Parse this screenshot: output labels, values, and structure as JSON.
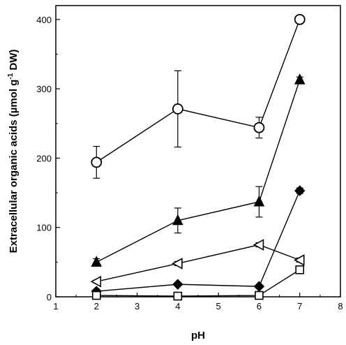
{
  "chart_data": {
    "type": "scatter",
    "xlabel": "pH",
    "ylabel_parts": [
      "Extracellular organic acids (µmol g",
      "-1",
      " DW)"
    ],
    "xlim": [
      1,
      8
    ],
    "ylim": [
      0,
      420
    ],
    "x_ticks": [
      1,
      2,
      3,
      4,
      5,
      6,
      7,
      8
    ],
    "y_ticks": [
      0,
      100,
      200,
      300,
      400
    ],
    "grid": false,
    "series": [
      {
        "marker": "open-circle",
        "points": [
          {
            "x": 2,
            "y": 194,
            "err": 23
          },
          {
            "x": 4,
            "y": 271,
            "err": 55
          },
          {
            "x": 6,
            "y": 244,
            "err": 15
          },
          {
            "x": 7,
            "y": 400,
            "err": 3
          }
        ]
      },
      {
        "marker": "filled-triangle-up",
        "points": [
          {
            "x": 2,
            "y": 50,
            "err": 5
          },
          {
            "x": 4,
            "y": 110,
            "err": 18
          },
          {
            "x": 6,
            "y": 137,
            "err": 22
          },
          {
            "x": 7,
            "y": 313,
            "err": 4
          }
        ]
      },
      {
        "marker": "filled-diamond",
        "points": [
          {
            "x": 2,
            "y": 8,
            "err": 3
          },
          {
            "x": 4,
            "y": 18,
            "err": 2
          },
          {
            "x": 6,
            "y": 15,
            "err": 2
          },
          {
            "x": 7,
            "y": 153,
            "err": 4
          }
        ]
      },
      {
        "marker": "open-triangle-left",
        "points": [
          {
            "x": 2,
            "y": 22,
            "err": 2
          },
          {
            "x": 4,
            "y": 48,
            "err": 3
          },
          {
            "x": 6,
            "y": 75,
            "err": 3
          },
          {
            "x": 7,
            "y": 53,
            "err": 3
          }
        ]
      },
      {
        "marker": "open-square",
        "points": [
          {
            "x": 2,
            "y": 2,
            "err": 1
          },
          {
            "x": 4,
            "y": 1,
            "err": 1
          },
          {
            "x": 6,
            "y": 2,
            "err": 1
          },
          {
            "x": 7,
            "y": 39,
            "err": 3
          }
        ]
      }
    ]
  }
}
